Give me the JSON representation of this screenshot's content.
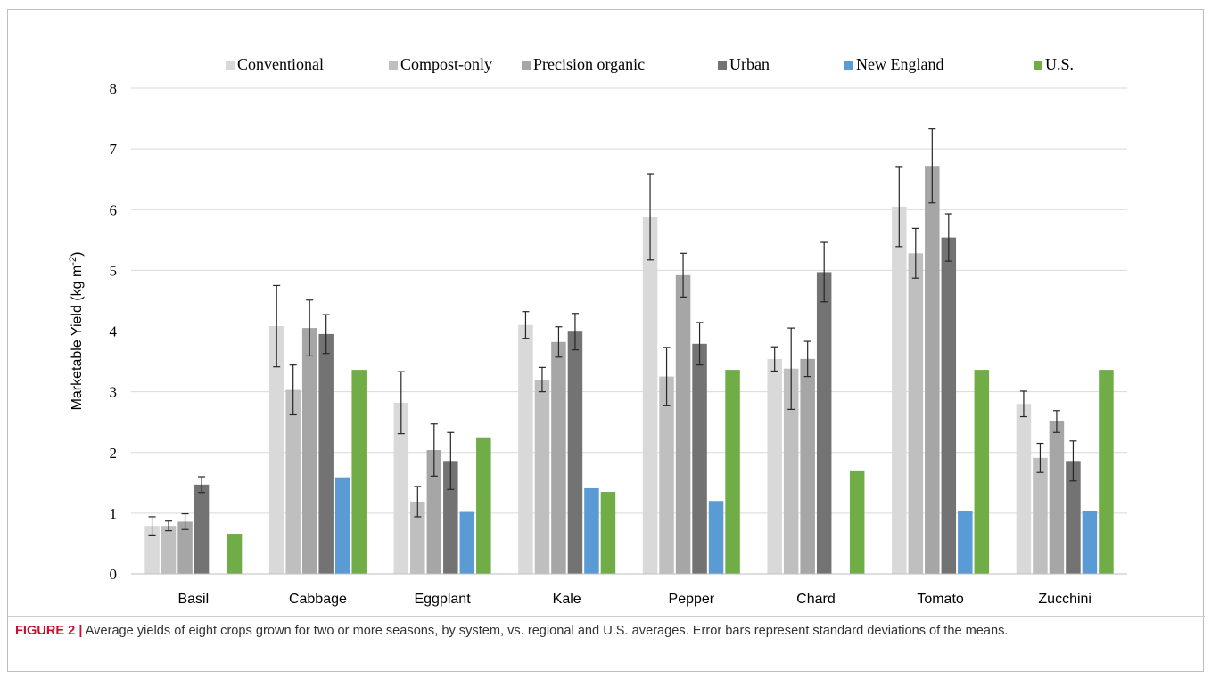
{
  "caption": {
    "label": "FIGURE 2 |",
    "text": " Average yields of eight crops grown for two or more seasons, by system, vs. regional and U.S. averages. Error bars represent standard deviations of the means."
  },
  "chart_data": {
    "type": "bar",
    "title": "",
    "xlabel": "",
    "ylabel": "Marketable Yield (kg m",
    "ylabel_sup": "-2",
    "ylabel_close": ")",
    "ylim": [
      0,
      8
    ],
    "yticks": [
      0,
      1,
      2,
      3,
      4,
      5,
      6,
      7,
      8
    ],
    "grid": true,
    "legend_position": "top",
    "categories": [
      "Basil",
      "Cabbage",
      "Eggplant",
      "Kale",
      "Pepper",
      "Chard",
      "Tomato",
      "Zucchini"
    ],
    "series": [
      {
        "name": "Conventional",
        "color": "#d9d9d9",
        "values": [
          0.79,
          4.08,
          2.82,
          4.1,
          5.88,
          3.54,
          6.05,
          2.8
        ],
        "errors": [
          0.15,
          0.67,
          0.51,
          0.22,
          0.71,
          0.2,
          0.66,
          0.21
        ]
      },
      {
        "name": "Compost-only",
        "color": "#bfbfbf",
        "values": [
          0.79,
          3.03,
          1.19,
          3.2,
          3.25,
          3.38,
          5.28,
          1.91
        ],
        "errors": [
          0.08,
          0.41,
          0.25,
          0.2,
          0.48,
          0.67,
          0.41,
          0.24
        ]
      },
      {
        "name": "Precision organic",
        "color": "#a6a6a6",
        "values": [
          0.86,
          4.05,
          2.04,
          3.82,
          4.92,
          3.54,
          6.72,
          2.51
        ],
        "errors": [
          0.13,
          0.46,
          0.43,
          0.25,
          0.36,
          0.29,
          0.61,
          0.18
        ]
      },
      {
        "name": "Urban",
        "color": "#737373",
        "values": [
          1.47,
          3.95,
          1.86,
          3.99,
          3.79,
          4.97,
          5.54,
          1.86
        ],
        "errors": [
          0.13,
          0.32,
          0.47,
          0.3,
          0.35,
          0.49,
          0.39,
          0.33
        ]
      },
      {
        "name": "New England",
        "color": "#5b9bd5",
        "values": [
          null,
          1.59,
          1.02,
          1.41,
          1.2,
          null,
          1.04,
          1.04
        ],
        "errors": [
          null,
          null,
          null,
          null,
          null,
          null,
          null,
          null
        ]
      },
      {
        "name": "U.S.",
        "color": "#70ad47",
        "values": [
          0.66,
          3.36,
          2.25,
          1.35,
          3.36,
          1.69,
          3.36,
          3.36
        ],
        "errors": [
          null,
          null,
          null,
          null,
          null,
          null,
          null,
          null
        ]
      }
    ]
  }
}
